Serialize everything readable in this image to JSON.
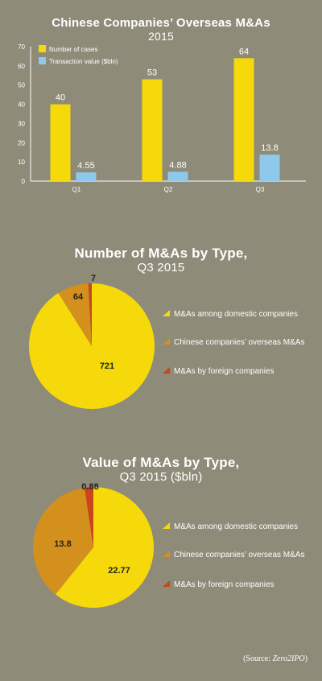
{
  "colors": {
    "background": "#8e8b79",
    "yellow": "#f5d90b",
    "light_blue": "#8ec9ec",
    "orange": "#d4901c",
    "red": "#c9451c"
  },
  "chart_data": [
    {
      "type": "bar",
      "title": "Chinese Companies’ Overseas M&As",
      "subtitle": "2015",
      "categories": [
        "Q1",
        "Q2",
        "Q3"
      ],
      "series": [
        {
          "name": "Number of cases",
          "values": [
            40,
            53,
            64
          ],
          "labels": [
            "40",
            "53",
            "64"
          ],
          "color": "#f5d90b"
        },
        {
          "name": "Transaction value ($bln)",
          "values": [
            4.55,
            4.88,
            13.8
          ],
          "labels": [
            "4.55",
            "4.88",
            "13.8"
          ],
          "color": "#8ec9ec"
        }
      ],
      "ylim": [
        0,
        70
      ],
      "yticks": [
        0,
        10,
        20,
        30,
        40,
        50,
        60,
        70
      ],
      "grid": false,
      "legend": "top-left"
    },
    {
      "type": "pie",
      "title": "Number of M&As by Type,",
      "subtitle": "Q3 2015",
      "slices": [
        {
          "label": "M&As among domestic companies",
          "value": 721,
          "value_label": "721",
          "color": "#f5d90b"
        },
        {
          "label": "Chinese companies’ overseas M&As",
          "value": 64,
          "value_label": "64",
          "color": "#d4901c"
        },
        {
          "label": "M&As by foreign companies",
          "value": 7,
          "value_label": "7",
          "color": "#c9451c"
        }
      ],
      "legend": "right"
    },
    {
      "type": "pie",
      "title": "Value of M&As by Type,",
      "subtitle": "Q3 2015 ($bln)",
      "slices": [
        {
          "label": "M&As among domestic companies",
          "value": 22.77,
          "value_label": "22.77",
          "color": "#f5d90b"
        },
        {
          "label": "Chinese companies’ overseas M&As",
          "value": 13.8,
          "value_label": "13.8",
          "color": "#d4901c"
        },
        {
          "label": "M&As by foreign companies",
          "value": 0.88,
          "value_label": "0.88",
          "color": "#c9451c"
        }
      ],
      "legend": "right"
    }
  ],
  "source": {
    "prefix": "(Source: ",
    "name": "Zero2IPO",
    "suffix": ")"
  }
}
